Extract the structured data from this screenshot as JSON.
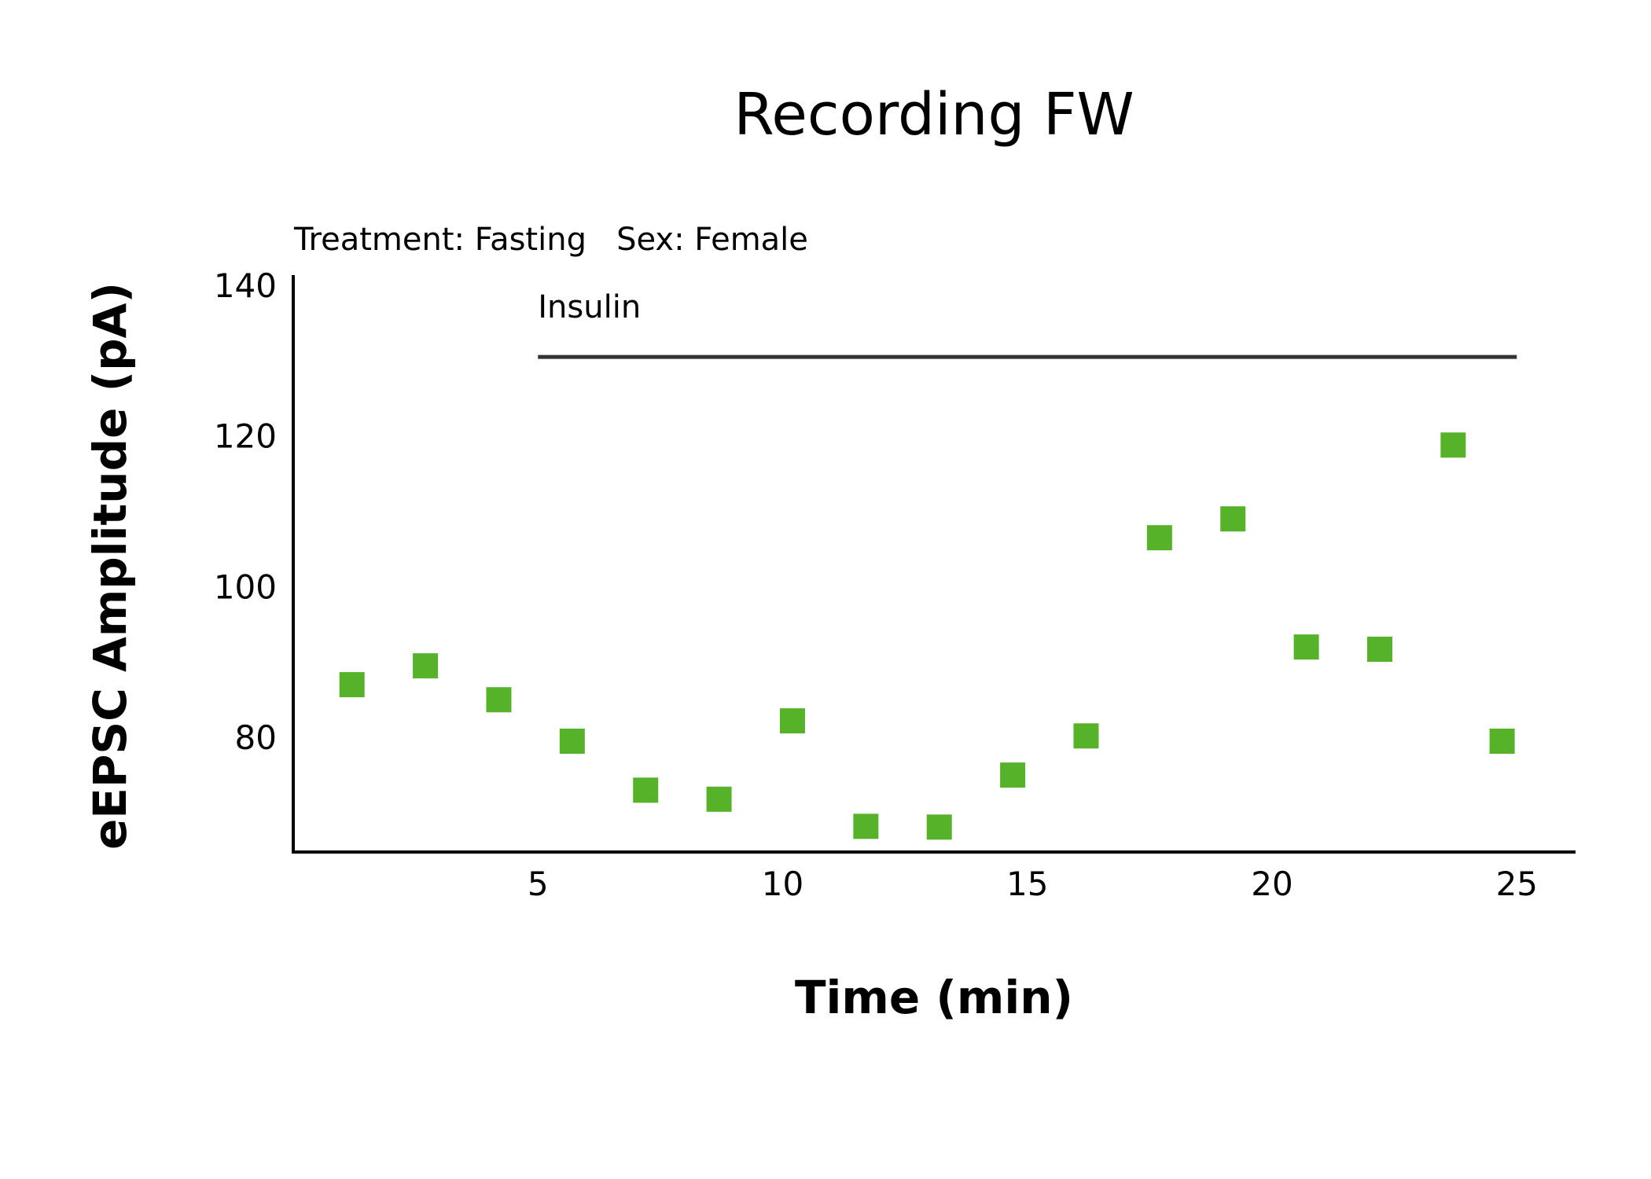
{
  "chart_data": {
    "type": "scatter",
    "title": "Recording FW",
    "subtitle": "Treatment: Fasting   Sex: Female",
    "xlabel": "Time (min)",
    "ylabel": "eEPSC Amplitude (pA)",
    "xlim": [
      0,
      26.2
    ],
    "ylim": [
      65,
      140
    ],
    "xticks": [
      5,
      10,
      15,
      20,
      25
    ],
    "yticks": [
      80,
      100,
      120,
      140
    ],
    "marker": "square",
    "color": "#55b229",
    "grid": false,
    "annotation": {
      "label": "Insulin",
      "x_start": 5,
      "x_end": 25,
      "y": 130.5
    },
    "series": [
      {
        "x": [
          1.2,
          2.7,
          4.2,
          5.7,
          7.2,
          8.7,
          10.2,
          11.7,
          13.2,
          14.7,
          16.2,
          17.7,
          19.2,
          20.7,
          22.2,
          23.7,
          24.7
        ],
        "y": [
          87,
          89.5,
          85,
          79.5,
          73,
          71.8,
          82.2,
          68.2,
          68.1,
          75,
          80.2,
          106.5,
          109,
          92,
          91.7,
          118.8,
          79.5
        ]
      }
    ]
  }
}
